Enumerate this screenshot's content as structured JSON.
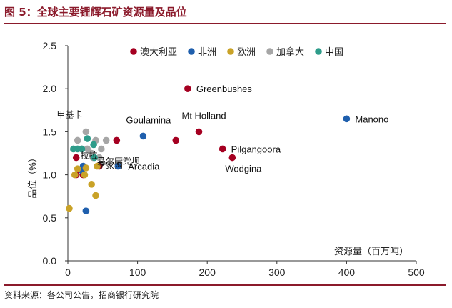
{
  "figure_title": "图 5：全球主要锂辉石矿资源量及品位",
  "source": "资料来源：各公司公告，招商银行研究院",
  "colors": {
    "brand": "#8B1A2B",
    "australia": "#A50021",
    "africa": "#1F5FAD",
    "europe": "#C9A227",
    "canada": "#A6A6A6",
    "china": "#2E9C8A"
  },
  "chart_data": {
    "type": "scatter",
    "title": "全球主要锂辉石矿资源量及品位",
    "xlabel": "资源量（百万吨）",
    "ylabel": "品位（%）",
    "xlim": [
      0,
      500
    ],
    "ylim": [
      0,
      2.5
    ],
    "xticks": [
      "0",
      "100",
      "200",
      "300",
      "400",
      "500"
    ],
    "yticks": [
      "0.0",
      "0.5",
      "1.0",
      "1.5",
      "2.0",
      "2.5"
    ],
    "grid": false,
    "legend_position": "top",
    "series": [
      {
        "name": "澳大利亚",
        "color": "#A50021",
        "points": [
          {
            "x": 172,
            "y": 2.0,
            "label": "Greenbushes"
          },
          {
            "x": 188,
            "y": 1.5,
            "label": "Mt Holland"
          },
          {
            "x": 222,
            "y": 1.3,
            "label": "Pilgangoora"
          },
          {
            "x": 236,
            "y": 1.2,
            "label": "Wodgina"
          },
          {
            "x": 155,
            "y": 1.4,
            "label": ""
          },
          {
            "x": 70,
            "y": 1.4,
            "label": ""
          },
          {
            "x": 45,
            "y": 1.1,
            "label": ""
          },
          {
            "x": 12,
            "y": 1.2,
            "label": ""
          },
          {
            "x": 12,
            "y": 1.0,
            "label": ""
          },
          {
            "x": 22,
            "y": 1.0,
            "label": ""
          }
        ]
      },
      {
        "name": "非洲",
        "color": "#1F5FAD",
        "points": [
          {
            "x": 400,
            "y": 1.65,
            "label": "Manono"
          },
          {
            "x": 108,
            "y": 1.45,
            "label": "Goulamina"
          },
          {
            "x": 72,
            "y": 1.1,
            "label": "Arcadia"
          },
          {
            "x": 22,
            "y": 1.1,
            "label": ""
          },
          {
            "x": 20,
            "y": 1.05,
            "label": ""
          },
          {
            "x": 26,
            "y": 0.58,
            "label": ""
          }
        ]
      },
      {
        "name": "欧洲",
        "color": "#C9A227",
        "points": [
          {
            "x": 2,
            "y": 0.61,
            "label": ""
          },
          {
            "x": 10,
            "y": 1.0,
            "label": ""
          },
          {
            "x": 14,
            "y": 1.07,
            "label": ""
          },
          {
            "x": 26,
            "y": 1.08,
            "label": ""
          },
          {
            "x": 34,
            "y": 0.89,
            "label": ""
          },
          {
            "x": 40,
            "y": 0.76,
            "label": ""
          },
          {
            "x": 42,
            "y": 1.1,
            "label": ""
          },
          {
            "x": 24,
            "y": 1.0,
            "label": ""
          }
        ]
      },
      {
        "name": "加拿大",
        "color": "#A6A6A6",
        "points": [
          {
            "x": 26,
            "y": 1.5,
            "label": "甲基卡"
          },
          {
            "x": 14,
            "y": 1.4,
            "label": ""
          },
          {
            "x": 40,
            "y": 1.4,
            "label": ""
          },
          {
            "x": 55,
            "y": 1.4,
            "label": ""
          },
          {
            "x": 20,
            "y": 1.3,
            "label": ""
          },
          {
            "x": 28,
            "y": 1.3,
            "label": ""
          },
          {
            "x": 34,
            "y": 1.25,
            "label": ""
          },
          {
            "x": 45,
            "y": 1.2,
            "label": "马尔康党坝"
          },
          {
            "x": 48,
            "y": 1.3,
            "label": ""
          },
          {
            "x": 36,
            "y": 1.2,
            "label": ""
          }
        ]
      },
      {
        "name": "中国",
        "color": "#2E9C8A",
        "points": [
          {
            "x": 8,
            "y": 1.3,
            "label": ""
          },
          {
            "x": 20,
            "y": 1.3,
            "label": ""
          },
          {
            "x": 28,
            "y": 1.42,
            "label": ""
          },
          {
            "x": 37,
            "y": 1.35,
            "label": ""
          },
          {
            "x": 14,
            "y": 1.3,
            "label": "拉拉"
          },
          {
            "x": 38,
            "y": 1.2,
            "label": "李家沟"
          }
        ]
      }
    ]
  }
}
